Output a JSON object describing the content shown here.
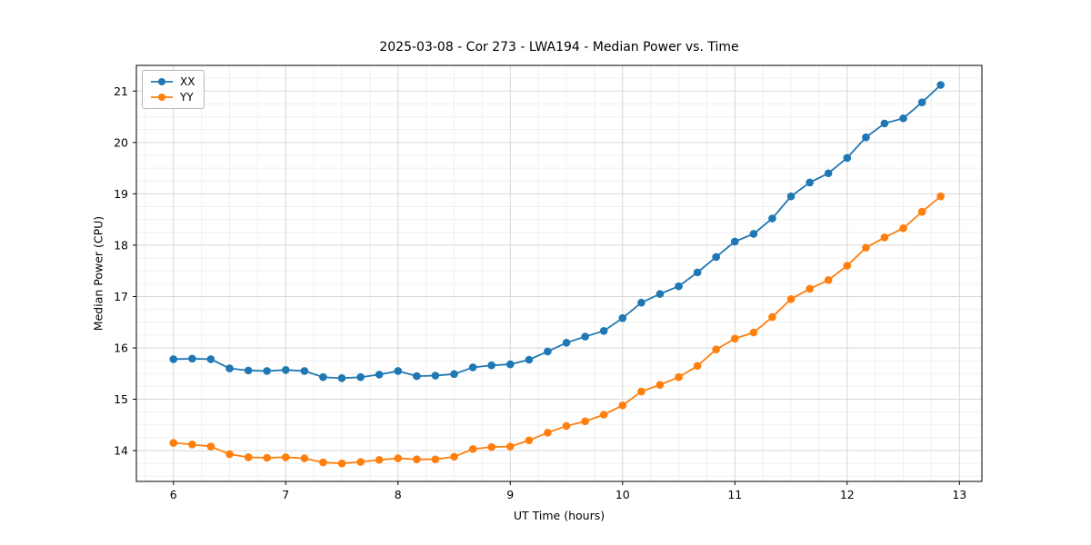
{
  "chart_data": {
    "type": "line",
    "title": "2025-03-08 - Cor 273 - LWA194 - Median Power vs. Time",
    "xlabel": "UT Time (hours)",
    "ylabel": "Median Power (CPU)",
    "xlim": [
      5.67,
      13.2
    ],
    "ylim": [
      13.4,
      21.5
    ],
    "xticks": [
      6,
      7,
      8,
      9,
      10,
      11,
      12,
      13
    ],
    "yticks": [
      14,
      15,
      16,
      17,
      18,
      19,
      20,
      21
    ],
    "grid": true,
    "legend_position": "top-left",
    "x": [
      6.0,
      6.167,
      6.333,
      6.5,
      6.667,
      6.833,
      7.0,
      7.167,
      7.333,
      7.5,
      7.667,
      7.833,
      8.0,
      8.167,
      8.333,
      8.5,
      8.667,
      8.833,
      9.0,
      9.167,
      9.333,
      9.5,
      9.667,
      9.833,
      10.0,
      10.167,
      10.333,
      10.5,
      10.667,
      10.833,
      11.0,
      11.167,
      11.333,
      11.5,
      11.667,
      11.833,
      12.0,
      12.167,
      12.333,
      12.5,
      12.667,
      12.833
    ],
    "series": [
      {
        "name": "XX",
        "color": "#1f77b4",
        "values": [
          15.78,
          15.79,
          15.78,
          15.6,
          15.56,
          15.55,
          15.57,
          15.55,
          15.43,
          15.41,
          15.43,
          15.48,
          15.55,
          15.45,
          15.46,
          15.49,
          15.62,
          15.66,
          15.68,
          15.77,
          15.93,
          16.1,
          16.22,
          16.33,
          16.58,
          16.88,
          17.05,
          17.2,
          17.47,
          17.77,
          18.07,
          18.22,
          18.52,
          18.95,
          19.22,
          19.4,
          19.7,
          20.1,
          20.37,
          20.47,
          20.78,
          21.12
        ]
      },
      {
        "name": "YY",
        "color": "#ff7f0e",
        "values": [
          14.15,
          14.12,
          14.08,
          13.93,
          13.87,
          13.86,
          13.87,
          13.85,
          13.77,
          13.75,
          13.78,
          13.82,
          13.85,
          13.83,
          13.83,
          13.88,
          14.03,
          14.07,
          14.08,
          14.2,
          14.35,
          14.48,
          14.57,
          14.7,
          14.88,
          15.15,
          15.28,
          15.43,
          15.65,
          15.97,
          16.18,
          16.3,
          16.6,
          16.95,
          17.15,
          17.32,
          17.6,
          17.95,
          18.15,
          18.33,
          18.65,
          18.95
        ]
      }
    ]
  }
}
